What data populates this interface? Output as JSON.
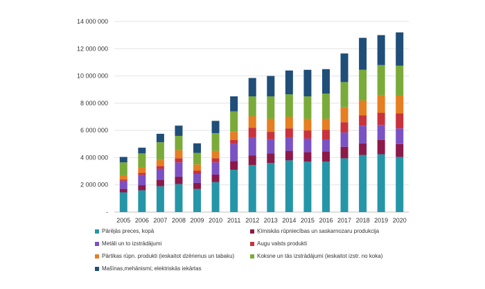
{
  "chart_data": {
    "type": "bar",
    "stacked": true,
    "title": "",
    "xlabel": "",
    "ylabel": "",
    "ylim": [
      0,
      14000000
    ],
    "y_ticks": [
      "-",
      "2 000 000",
      "4 000 000",
      "6 000 000",
      "8 000 000",
      "10 000 000",
      "12 000 000",
      "14 000 000"
    ],
    "categories": [
      "2005",
      "2006",
      "2007",
      "2008",
      "2009",
      "2010",
      "2011",
      "2012",
      "2013",
      "2014",
      "2015",
      "2016",
      "2017",
      "2018",
      "2019",
      "2020"
    ],
    "series": [
      {
        "name": "Pārējās preces, kopā",
        "color": "#2596a8",
        "values": [
          1450000,
          1600000,
          1900000,
          2050000,
          1700000,
          2200000,
          3100000,
          3450000,
          3600000,
          3800000,
          3700000,
          3700000,
          3950000,
          4200000,
          4250000,
          4050000
        ]
      },
      {
        "name": "Ķīmiskās rūpniecības un saskarnozaru produkcija",
        "color": "#8b1a4a",
        "values": [
          250000,
          380000,
          480000,
          550000,
          450000,
          550000,
          650000,
          700000,
          700000,
          700000,
          700000,
          750000,
          850000,
          850000,
          1050000,
          950000
        ]
      },
      {
        "name": "Metāli un to izstrādājumi",
        "color": "#7b52c4",
        "values": [
          600000,
          750000,
          800000,
          1050000,
          650000,
          900000,
          1250000,
          1350000,
          1050000,
          1000000,
          1000000,
          850000,
          1050000,
          1300000,
          1100000,
          1150000
        ]
      },
      {
        "name": "Augu valsts produkti",
        "color": "#c9333c",
        "values": [
          100000,
          150000,
          200000,
          300000,
          250000,
          300000,
          300000,
          700000,
          550000,
          650000,
          600000,
          750000,
          750000,
          750000,
          900000,
          1100000
        ]
      },
      {
        "name": "Pārtikas rūpn. produkti (ieskaitot dzērienus un tabaku)",
        "color": "#e67e22",
        "values": [
          300000,
          380000,
          450000,
          600000,
          450000,
          550000,
          600000,
          850000,
          950000,
          850000,
          850000,
          800000,
          1100000,
          1100000,
          1300000,
          1300000
        ]
      },
      {
        "name": "Koksne un tās izstrādājumi (ieskaitot izstr. no koka)",
        "color": "#7aab3a",
        "values": [
          950000,
          1050000,
          1300000,
          1050000,
          850000,
          1300000,
          1500000,
          1450000,
          1650000,
          1650000,
          1650000,
          1850000,
          1850000,
          2250000,
          2200000,
          2200000
        ]
      },
      {
        "name": "Mašīnas,mehānismi; elektriskās iekārtas",
        "color": "#1f4e79",
        "values": [
          400000,
          420000,
          620000,
          750000,
          700000,
          900000,
          1100000,
          1350000,
          1500000,
          1750000,
          1950000,
          1800000,
          2100000,
          2350000,
          2200000,
          2450000
        ]
      }
    ]
  }
}
